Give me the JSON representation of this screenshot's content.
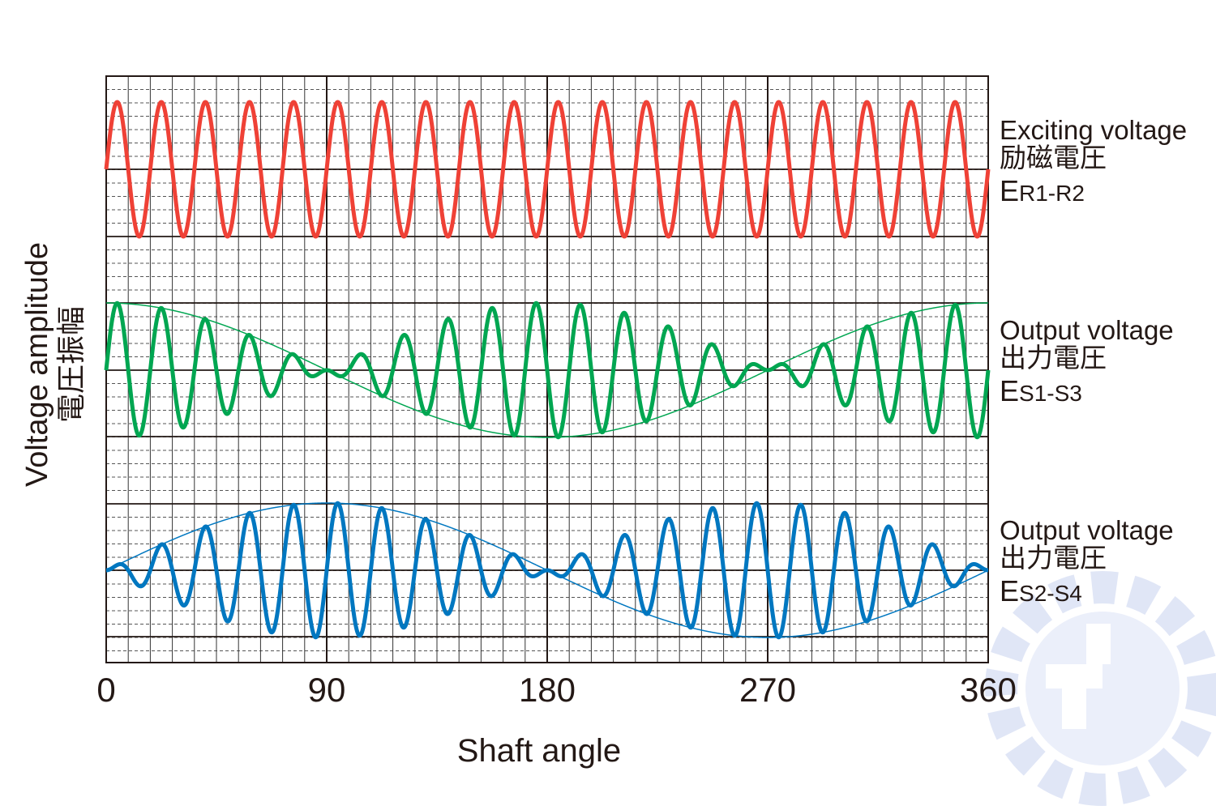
{
  "y_axis_label": "Voltage amplitude",
  "y_axis_label_jp": "電圧振幅",
  "x_axis_label": "Shaft angle",
  "x_ticks": [
    "0",
    "90",
    "180",
    "270",
    "360"
  ],
  "signals": [
    {
      "name": "Exciting voltage",
      "name_jp": "励磁電圧",
      "symbol": "E",
      "subscript": "R1-R2"
    },
    {
      "name": "Output voltage",
      "name_jp": "出力電圧",
      "symbol": "E",
      "subscript": "S1-S3"
    },
    {
      "name": "Output voltage",
      "name_jp": "出力電圧",
      "symbol": "E",
      "subscript": "S2-S4"
    }
  ]
}
